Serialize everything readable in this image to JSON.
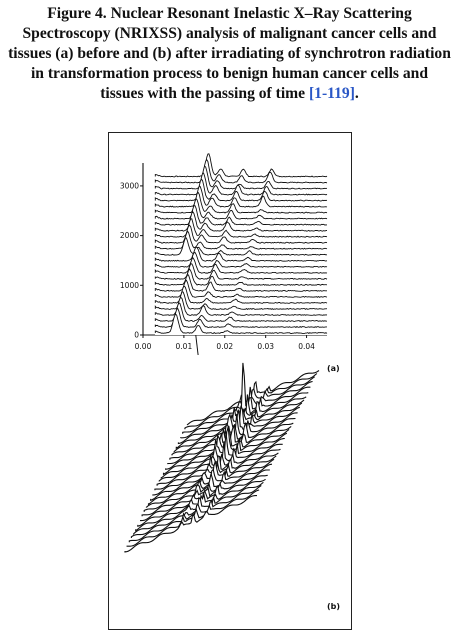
{
  "caption": {
    "figure_label": "Figure 4.",
    "text": " Nuclear Resonant Inelastic X–Ray Scattering Spectroscopy (NRIXSS) analysis of malignant cancer cells and tissues (a) before and (b) after irradiating of synchrotron radiation in transformation process to benign human cancer cells and tissues with the passing of time ",
    "reference": "[1-119]",
    "end": "."
  },
  "panel_a": {
    "label": "(a)",
    "chart_data": {
      "type": "line",
      "xlim": [
        0.0,
        0.045
      ],
      "ylim": [
        0,
        3300
      ],
      "x_ticks": [
        "0.00",
        "0.01",
        "0.02",
        "0.03",
        "0.04"
      ],
      "y_ticks": [
        "0",
        "1000",
        "2000",
        "3000"
      ],
      "trace_count": 27,
      "peaks_x": [
        0.016,
        0.019,
        0.0245,
        0.0315
      ]
    }
  },
  "panel_b": {
    "label": "(b)",
    "chart_data": {
      "type": "area",
      "trace_count": 30,
      "tallest_peak_rank": 1
    }
  }
}
